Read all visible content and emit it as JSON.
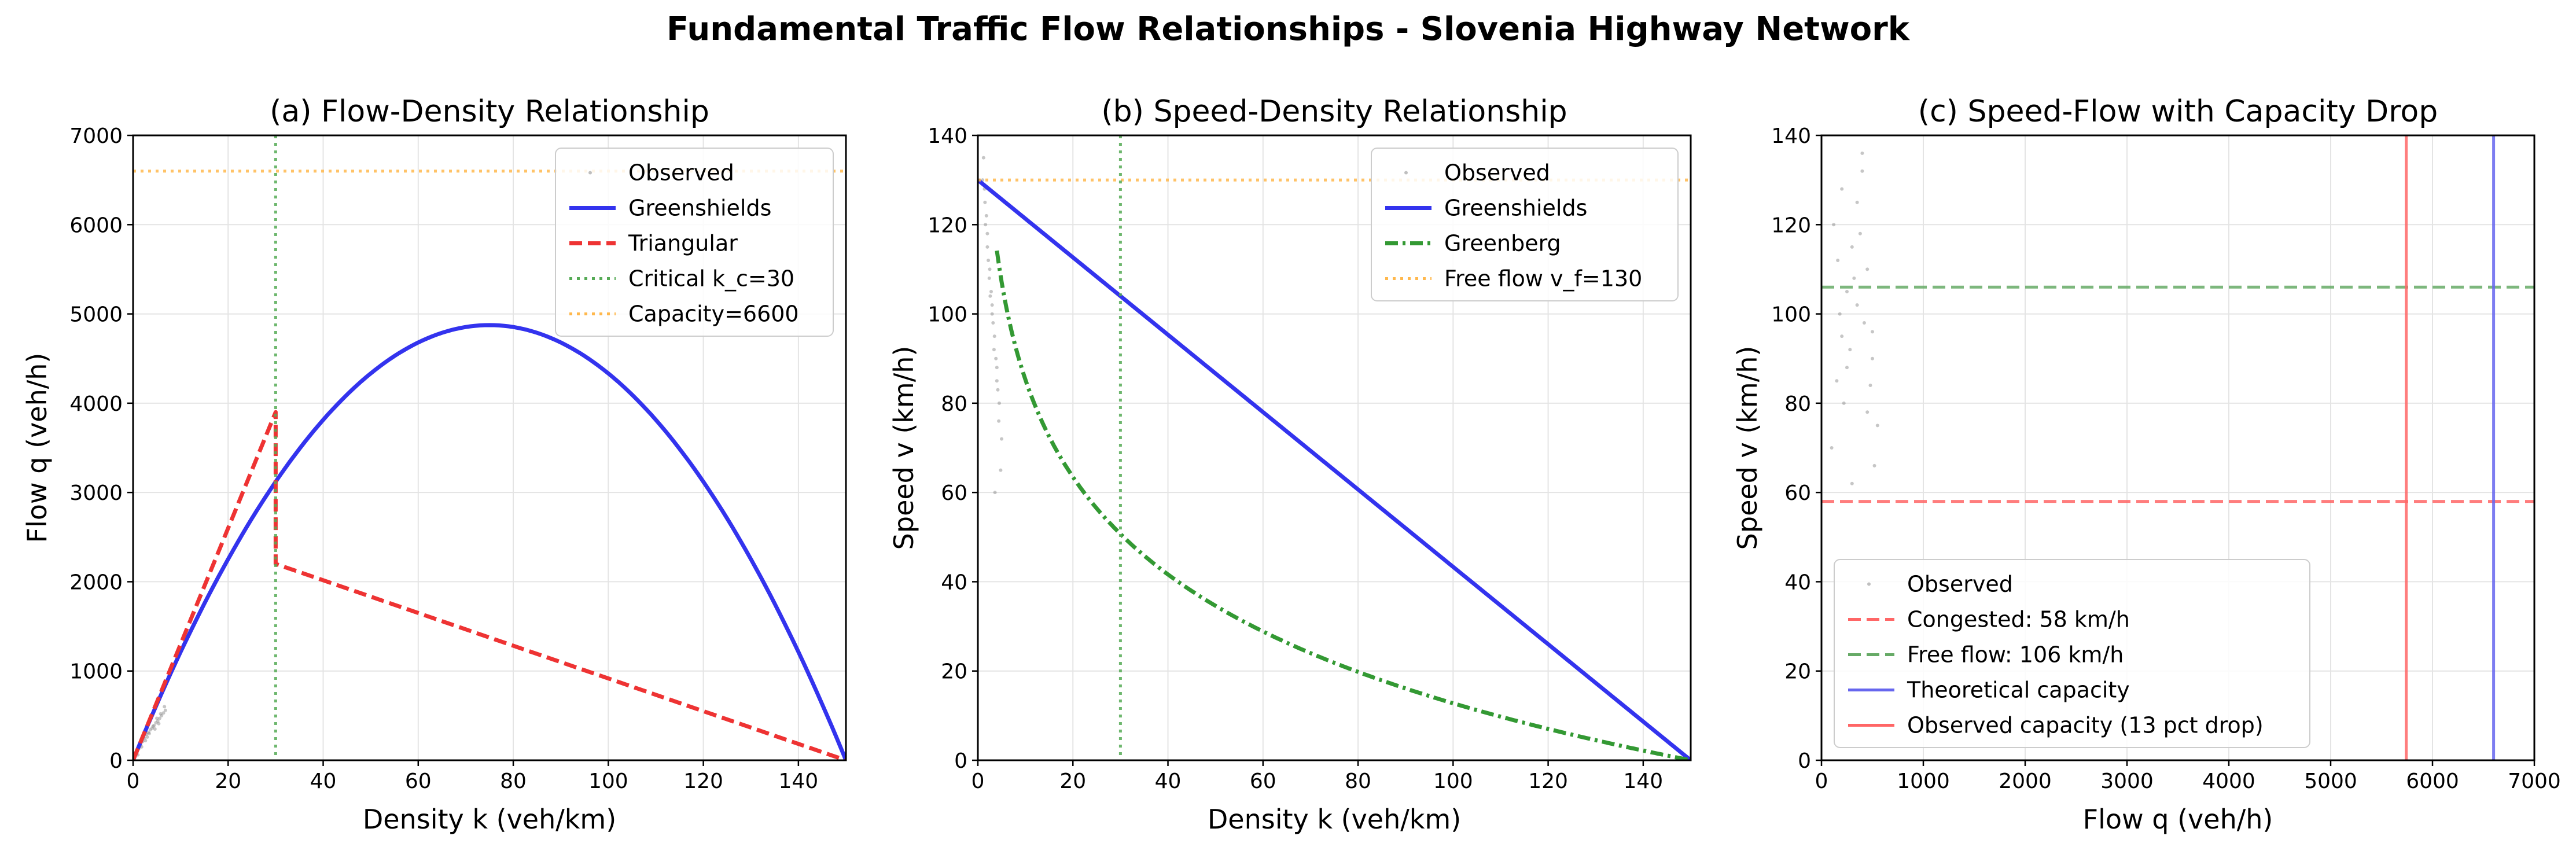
{
  "figure": {
    "title": "Fundamental Traffic Flow Relationships - Slovenia Highway Network"
  },
  "chart_data": [
    {
      "type": "line",
      "title": "(a) Flow-Density Relationship",
      "xlabel": "Density k (veh/km)",
      "ylabel": "Flow q (veh/h)",
      "xlim": [
        0,
        150
      ],
      "ylim": [
        0,
        7000
      ],
      "xticks": [
        0,
        20,
        40,
        60,
        80,
        100,
        120,
        140
      ],
      "yticks": [
        0,
        1000,
        2000,
        3000,
        4000,
        5000,
        6000,
        7000
      ],
      "grid": true,
      "legend_position": "top-right",
      "series": [
        {
          "name": "Observed",
          "kind": "scatter",
          "color": "#808080",
          "x": [
            0.8,
            1.2,
            1.6,
            2.0,
            2.4,
            2.8,
            3.2,
            3.6,
            4.0,
            4.4,
            4.8,
            5.2,
            5.6,
            6.0,
            6.4,
            6.8,
            1.0,
            1.8,
            2.6,
            3.4,
            4.2,
            5.0,
            5.8,
            6.6,
            3.0,
            4.6,
            5.4
          ],
          "y": [
            90,
            130,
            170,
            210,
            250,
            290,
            310,
            340,
            360,
            390,
            420,
            440,
            470,
            500,
            530,
            560,
            60,
            150,
            220,
            300,
            380,
            470,
            520,
            600,
            260,
            350,
            410
          ]
        },
        {
          "name": "Greenshields",
          "kind": "line",
          "style": "solid",
          "color": "#3333ee",
          "vf": 130,
          "kj": 150
        },
        {
          "name": "Triangular",
          "kind": "line",
          "style": "dashed",
          "color": "#ee3333",
          "x": [
            0,
            30,
            30,
            150
          ],
          "y": [
            0,
            3900,
            2200,
            0
          ]
        },
        {
          "name": "Critical k_c=30",
          "kind": "vline",
          "style": "dotted",
          "color": "#55aa55",
          "value": 30
        },
        {
          "name": "Capacity=6600",
          "kind": "hline",
          "style": "dotted",
          "color": "#ffb84d",
          "value": 6600
        }
      ]
    },
    {
      "type": "line",
      "title": "(b) Speed-Density Relationship",
      "xlabel": "Density k (veh/km)",
      "ylabel": "Speed v (km/h)",
      "xlim": [
        0,
        150
      ],
      "ylim": [
        0,
        140
      ],
      "xticks": [
        0,
        20,
        40,
        60,
        80,
        100,
        120,
        140
      ],
      "yticks": [
        0,
        20,
        40,
        60,
        80,
        100,
        120,
        140
      ],
      "grid": true,
      "legend_position": "top-right",
      "series": [
        {
          "name": "Observed",
          "kind": "scatter",
          "color": "#808080",
          "x": [
            1.0,
            1.5,
            2.0,
            2.5,
            3.0,
            3.5,
            4.0,
            4.5,
            5.0,
            1.2,
            1.8,
            2.2,
            2.8,
            3.2,
            3.8,
            4.2,
            4.8,
            1.4,
            2.4,
            3.4,
            4.4,
            2.0,
            3.0,
            4.0,
            1.6,
            2.6,
            3.6
          ],
          "y": [
            130,
            125,
            118,
            110,
            102,
            95,
            88,
            80,
            72,
            135,
            122,
            112,
            105,
            98,
            90,
            83,
            65,
            128,
            108,
            92,
            76,
            115,
            100,
            85,
            120,
            104,
            60
          ]
        },
        {
          "name": "Greenshields",
          "kind": "line",
          "style": "solid",
          "color": "#3333ee",
          "x": [
            0,
            150
          ],
          "y": [
            130,
            0
          ]
        },
        {
          "name": "Greenberg",
          "kind": "line",
          "style": "dashdot",
          "color": "#339933",
          "v0": 31.5,
          "kj": 150,
          "kmin": 4
        },
        {
          "name": "Free flow v_f=130",
          "kind": "hline",
          "style": "dotted",
          "color": "#ffb84d",
          "value": 130
        },
        {
          "name": "",
          "kind": "vline",
          "style": "dotted",
          "color": "#55aa55",
          "value": 30
        }
      ]
    },
    {
      "type": "scatter",
      "title": "(c) Speed-Flow with Capacity Drop",
      "xlabel": "Flow q (veh/h)",
      "ylabel": "Speed v (km/h)",
      "xlim": [
        0,
        7000
      ],
      "ylim": [
        0,
        140
      ],
      "xticks": [
        0,
        1000,
        2000,
        3000,
        4000,
        5000,
        6000,
        7000
      ],
      "yticks": [
        0,
        20,
        40,
        60,
        80,
        100,
        120,
        140
      ],
      "grid": true,
      "legend_position": "bottom-left",
      "series": [
        {
          "name": "Observed",
          "kind": "scatter",
          "color": "#808080",
          "x": [
            100,
            150,
            200,
            250,
            300,
            350,
            400,
            450,
            500,
            550,
            120,
            180,
            220,
            280,
            320,
            380,
            420,
            480,
            520,
            200,
            300,
            400,
            250,
            350,
            450,
            160,
            500
          ],
          "y": [
            70,
            85,
            95,
            105,
            115,
            125,
            132,
            110,
            90,
            75,
            120,
            100,
            80,
            92,
            108,
            118,
            98,
            84,
            66,
            128,
            62,
            136,
            88,
            102,
            78,
            112,
            96
          ]
        },
        {
          "name": "Congested: 58 km/h",
          "kind": "hline",
          "style": "dashed",
          "color": "#ff6666",
          "value": 58
        },
        {
          "name": "Free flow: 106 km/h",
          "kind": "hline",
          "style": "dashed",
          "color": "#66aa66",
          "value": 106
        },
        {
          "name": "Theoretical capacity",
          "kind": "vline",
          "style": "solid",
          "color": "#6666ee",
          "value": 6600
        },
        {
          "name": "Observed capacity (13 pct drop)",
          "kind": "vline",
          "style": "solid",
          "color": "#ff6666",
          "value": 5742
        }
      ]
    }
  ]
}
